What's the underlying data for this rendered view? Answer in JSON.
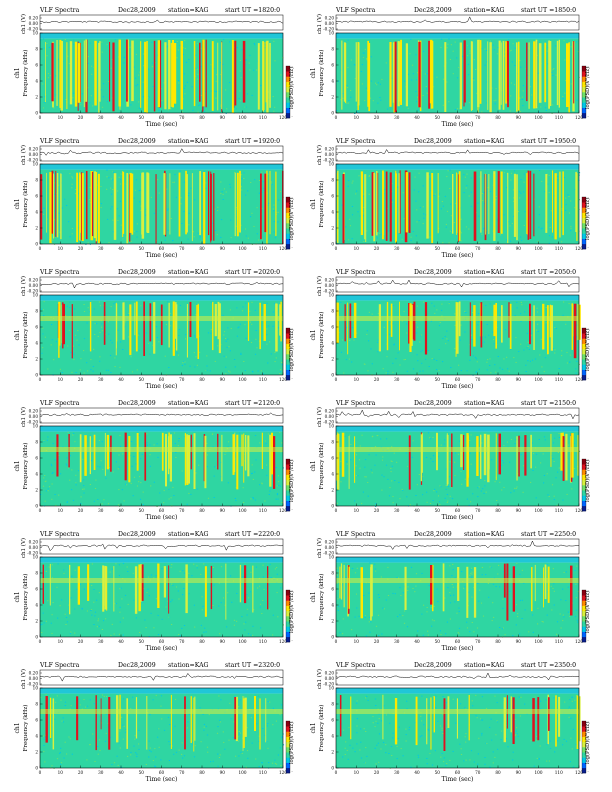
{
  "colors": {
    "spectrogram_scale": [
      "#0a1f8f",
      "#0066ff",
      "#00c8e6",
      "#2fd6a2",
      "#6fe06a",
      "#d8f040",
      "#ffe800",
      "#ff8a00",
      "#e0121e",
      "#8a0010"
    ],
    "background": "#20c6d8"
  },
  "chart_data": [
    {
      "type": "heatmap",
      "title_left": "VLF Spectra",
      "date": "Dec28,2009",
      "station": "station=KAG",
      "start": "start  UT  =1820:0",
      "channel_label": "ch1",
      "ch_ylabel": "ch1 (V)",
      "ch_ticks": [
        "0.20",
        "0.00",
        "-0.20"
      ],
      "ylabel": "Frequency (kHz)",
      "xlabel": "Time (sec)",
      "xlim": [
        0,
        120
      ],
      "ylim": [
        0,
        10
      ],
      "x_ticks": [
        "0",
        "10",
        "20",
        "30",
        "40",
        "50",
        "60",
        "70",
        "80",
        "90",
        "100",
        "110",
        "120"
      ],
      "y_ticks": [
        "0",
        "2",
        "4",
        "6",
        "8",
        "10"
      ],
      "colorbar_label": "log(PSD)(V²/Hz)",
      "colorbar_ticks": [
        "-",
        "-",
        "-",
        "-"
      ],
      "activity": "high"
    },
    {
      "type": "heatmap",
      "title_left": "VLF Spectra",
      "date": "Dec28,2009",
      "station": "station=KAG",
      "start": "start  UT  =1850:0",
      "channel_label": "ch1",
      "ch_ylabel": "ch1 (V)",
      "ch_ticks": [
        "0.20",
        "0.00",
        "-0.20"
      ],
      "ylabel": "Frequency (kHz)",
      "xlabel": "Time (sec)",
      "xlim": [
        0,
        120
      ],
      "ylim": [
        0,
        10
      ],
      "x_ticks": [
        "0",
        "10",
        "20",
        "30",
        "40",
        "50",
        "60",
        "70",
        "80",
        "90",
        "100",
        "110",
        "120"
      ],
      "y_ticks": [
        "0",
        "2",
        "4",
        "6",
        "8",
        "10"
      ],
      "colorbar_label": "log(PSD)(V²/Hz)",
      "colorbar_ticks": [
        "-",
        "-",
        "-",
        "-"
      ],
      "activity": "high"
    },
    {
      "type": "heatmap",
      "title_left": "VLF Spectra",
      "date": "Dec28,2009",
      "station": "station=KAG",
      "start": "start  UT  =1920:0",
      "channel_label": "ch1",
      "ch_ylabel": "ch1 (V)",
      "ch_ticks": [
        "0.20",
        "0.00",
        "-0.20"
      ],
      "ylabel": "Frequency (kHz)",
      "xlabel": "Time (sec)",
      "xlim": [
        0,
        120
      ],
      "ylim": [
        0,
        10
      ],
      "x_ticks": [
        "0",
        "10",
        "20",
        "30",
        "40",
        "50",
        "60",
        "70",
        "80",
        "90",
        "100",
        "110",
        "120"
      ],
      "y_ticks": [
        "0",
        "2",
        "4",
        "6",
        "8",
        "10"
      ],
      "colorbar_label": "log(PSD)(V²/Hz)",
      "colorbar_ticks": [
        "-",
        "-",
        "-",
        "-"
      ],
      "activity": "high"
    },
    {
      "type": "heatmap",
      "title_left": "VLF Spectra",
      "date": "Dec28,2009",
      "station": "station=KAG",
      "start": "start  UT  =1950:0",
      "channel_label": "ch1",
      "ch_ylabel": "ch1 (V)",
      "ch_ticks": [
        "0.20",
        "0.00",
        "-0.20"
      ],
      "ylabel": "Frequency (kHz)",
      "xlabel": "Time (sec)",
      "xlim": [
        0,
        120
      ],
      "ylim": [
        0,
        10
      ],
      "x_ticks": [
        "0",
        "10",
        "20",
        "30",
        "40",
        "50",
        "60",
        "70",
        "80",
        "90",
        "100",
        "110",
        "120"
      ],
      "y_ticks": [
        "0",
        "2",
        "4",
        "6",
        "8",
        "10"
      ],
      "colorbar_label": "log(PSD)(V²/Hz)",
      "colorbar_ticks": [
        "-",
        "-",
        "-",
        "-"
      ],
      "activity": "high"
    },
    {
      "type": "heatmap",
      "title_left": "VLF Spectra",
      "date": "Dec28,2009",
      "station": "station=KAG",
      "start": "start  UT  =2020:0",
      "channel_label": "ch1",
      "ch_ylabel": "ch1 (V)",
      "ch_ticks": [
        "0.20",
        "0.00",
        "-0.20"
      ],
      "ylabel": "Frequency (kHz)",
      "xlabel": "Time (sec)",
      "xlim": [
        0,
        120
      ],
      "ylim": [
        0,
        10
      ],
      "x_ticks": [
        "0",
        "10",
        "20",
        "30",
        "40",
        "50",
        "60",
        "70",
        "80",
        "90",
        "100",
        "110",
        "120"
      ],
      "y_ticks": [
        "0",
        "2",
        "4",
        "6",
        "8",
        "10"
      ],
      "colorbar_label": "log(PSD)(V²/Hz)",
      "colorbar_ticks": [
        "-",
        "-",
        "-",
        "-"
      ],
      "activity": "medium"
    },
    {
      "type": "heatmap",
      "title_left": "VLF Spectra",
      "date": "Dec28,2009",
      "station": "station=KAG",
      "start": "start  UT  =2050:0",
      "channel_label": "ch1",
      "ch_ylabel": "ch1 (V)",
      "ch_ticks": [
        "0.20",
        "0.00",
        "-0.20"
      ],
      "ylabel": "Frequency (kHz)",
      "xlabel": "Time (sec)",
      "xlim": [
        0,
        120
      ],
      "ylim": [
        0,
        10
      ],
      "x_ticks": [
        "0",
        "10",
        "20",
        "30",
        "40",
        "50",
        "60",
        "70",
        "80",
        "90",
        "100",
        "110",
        "120"
      ],
      "y_ticks": [
        "0",
        "2",
        "4",
        "6",
        "8",
        "10"
      ],
      "colorbar_label": "log(PSD)(V²/Hz)",
      "colorbar_ticks": [
        "-",
        "-",
        "-",
        "-"
      ],
      "activity": "medium"
    },
    {
      "type": "heatmap",
      "title_left": "VLF Spectra",
      "date": "Dec28,2009",
      "station": "station=KAG",
      "start": "start  UT  =2120:0",
      "channel_label": "ch1",
      "ch_ylabel": "ch1 (V)",
      "ch_ticks": [
        "0.20",
        "0.00",
        "-0.20"
      ],
      "ylabel": "Frequency (kHz)",
      "xlabel": "Time (sec)",
      "xlim": [
        0,
        120
      ],
      "ylim": [
        0,
        10
      ],
      "x_ticks": [
        "0",
        "10",
        "20",
        "30",
        "40",
        "50",
        "60",
        "70",
        "80",
        "90",
        "100",
        "110",
        "120"
      ],
      "y_ticks": [
        "0",
        "2",
        "4",
        "6",
        "8",
        "10"
      ],
      "colorbar_label": "log(PSD)(V²/Hz)",
      "colorbar_ticks": [
        "-",
        "-",
        "-",
        "-"
      ],
      "activity": "medium"
    },
    {
      "type": "heatmap",
      "title_left": "VLF Spectra",
      "date": "Dec28,2009",
      "station": "station=KAG",
      "start": "start  UT  =2150:0",
      "channel_label": "ch1",
      "ch_ylabel": "ch1 (V)",
      "ch_ticks": [
        "0.20",
        "0.00",
        "-0.20"
      ],
      "ylabel": "Frequency (kHz)",
      "xlabel": "Time (sec)",
      "xlim": [
        0,
        120
      ],
      "ylim": [
        0,
        10
      ],
      "x_ticks": [
        "0",
        "10",
        "20",
        "30",
        "40",
        "50",
        "60",
        "70",
        "80",
        "90",
        "100",
        "110",
        "120"
      ],
      "y_ticks": [
        "0",
        "2",
        "4",
        "6",
        "8",
        "10"
      ],
      "colorbar_label": "log(PSD)(V²/Hz)",
      "colorbar_ticks": [
        "-",
        "-",
        "-",
        "-"
      ],
      "activity": "medium"
    },
    {
      "type": "heatmap",
      "title_left": "VLF Spectra",
      "date": "Dec28,2009",
      "station": "station=KAG",
      "start": "start  UT  =2220:0",
      "channel_label": "ch1",
      "ch_ylabel": "ch1 (V)",
      "ch_ticks": [
        "0.20",
        "0.00",
        "-0.20"
      ],
      "ylabel": "Frequency (kHz)",
      "xlabel": "Time (sec)",
      "xlim": [
        0,
        120
      ],
      "ylim": [
        0,
        10
      ],
      "x_ticks": [
        "0",
        "10",
        "20",
        "30",
        "40",
        "50",
        "60",
        "70",
        "80",
        "90",
        "100",
        "110",
        "120"
      ],
      "y_ticks": [
        "0",
        "2",
        "4",
        "6",
        "8",
        "10"
      ],
      "colorbar_label": "log(PSD)(V²/Hz)",
      "colorbar_ticks": [
        "-",
        "-",
        "-",
        "-"
      ],
      "activity": "low"
    },
    {
      "type": "heatmap",
      "title_left": "VLF Spectra",
      "date": "Dec28,2009",
      "station": "station=KAG",
      "start": "start  UT  =2250:0",
      "channel_label": "ch1",
      "ch_ylabel": "ch1 (V)",
      "ch_ticks": [
        "0.20",
        "0.00",
        "-0.20"
      ],
      "ylabel": "Frequency (kHz)",
      "xlabel": "Time (sec)",
      "xlim": [
        0,
        120
      ],
      "ylim": [
        0,
        10
      ],
      "x_ticks": [
        "0",
        "10",
        "20",
        "30",
        "40",
        "50",
        "60",
        "70",
        "80",
        "90",
        "100",
        "110",
        "120"
      ],
      "y_ticks": [
        "0",
        "2",
        "4",
        "6",
        "8",
        "10"
      ],
      "colorbar_label": "log(PSD)(V²/Hz)",
      "colorbar_ticks": [
        "-",
        "-",
        "-",
        "-"
      ],
      "activity": "low"
    },
    {
      "type": "heatmap",
      "title_left": "VLF Spectra",
      "date": "Dec28,2009",
      "station": "station=KAG",
      "start": "start  UT  =2320:0",
      "channel_label": "ch1",
      "ch_ylabel": "ch1 (V)",
      "ch_ticks": [
        "0.20",
        "0.00",
        "-0.20"
      ],
      "ylabel": "Frequency (kHz)",
      "xlabel": "Time (sec)",
      "xlim": [
        0,
        120
      ],
      "ylim": [
        0,
        10
      ],
      "x_ticks": [
        "0",
        "10",
        "20",
        "30",
        "40",
        "50",
        "60",
        "70",
        "80",
        "90",
        "100",
        "110",
        "120"
      ],
      "y_ticks": [
        "0",
        "2",
        "4",
        "6",
        "8",
        "10"
      ],
      "colorbar_label": "log(PSD)(V²/Hz)",
      "colorbar_ticks": [
        "-",
        "-",
        "-",
        "-"
      ],
      "activity": "low"
    },
    {
      "type": "heatmap",
      "title_left": "VLF Spectra",
      "date": "Dec28,2009",
      "station": "station=KAG",
      "start": "start  UT  =2350:0",
      "channel_label": "ch1",
      "ch_ylabel": "ch1 (V)",
      "ch_ticks": [
        "0.20",
        "0.00",
        "-0.20"
      ],
      "ylabel": "Frequency (kHz)",
      "xlabel": "Time (sec)",
      "xlim": [
        0,
        120
      ],
      "ylim": [
        0,
        10
      ],
      "x_ticks": [
        "0",
        "10",
        "20",
        "30",
        "40",
        "50",
        "60",
        "70",
        "80",
        "90",
        "100",
        "110",
        "120"
      ],
      "y_ticks": [
        "0",
        "2",
        "4",
        "6",
        "8",
        "10"
      ],
      "colorbar_label": "log(PSD)(V²/Hz)",
      "colorbar_ticks": [
        "-",
        "-",
        "-",
        "-"
      ],
      "activity": "low"
    }
  ]
}
